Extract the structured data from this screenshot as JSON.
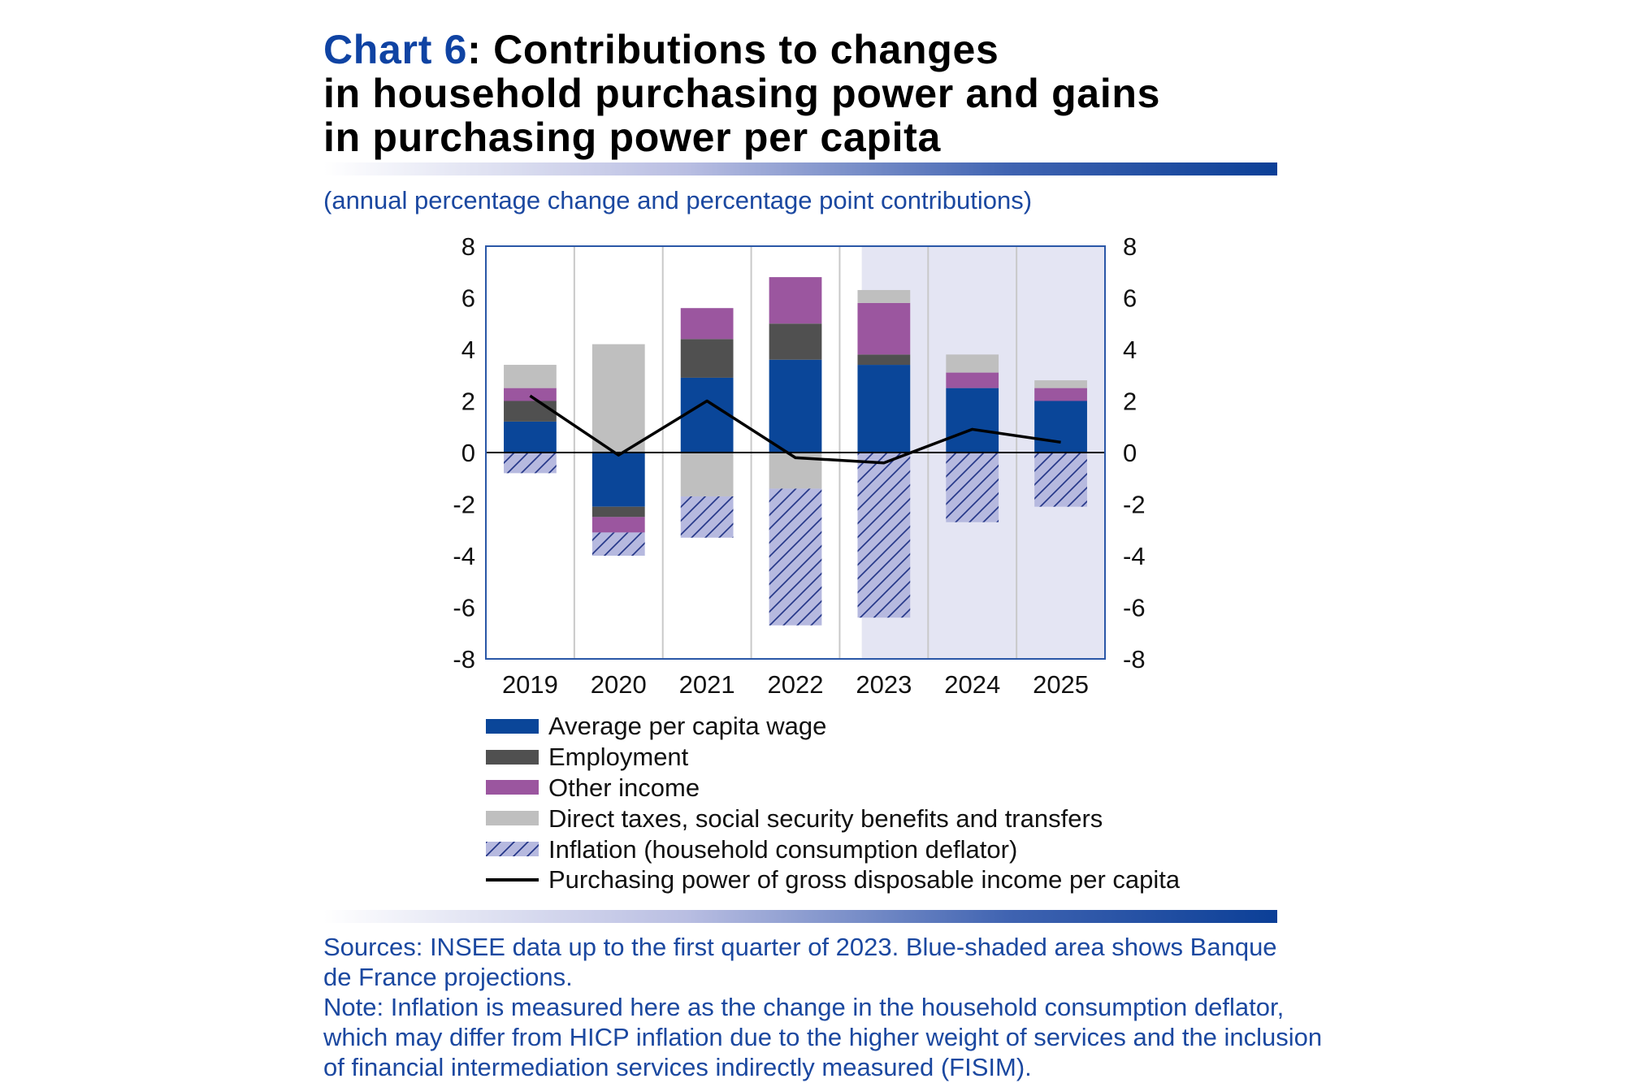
{
  "title": {
    "label": "Chart 6",
    "lines": [
      ": Contributions to changes",
      "in household purchasing power and gains",
      "in purchasing power per capita"
    ]
  },
  "subtitle": "(annual percentage change and percentage point contributions)",
  "notes": [
    "Sources: INSEE data up to the first quarter of 2023. Blue-shaded area shows Banque",
    "de France projections.",
    "Note: Inflation is measured here as the change in the household consumption deflator,",
    "which may differ from HICP inflation due to the higher weight of services and the inclusion",
    "of financial intermediation services indirectly measured (FISIM)."
  ],
  "colors": {
    "accent": "#0f43a3",
    "text_blue": "#1b48a0",
    "rule_gradient": [
      "#ffffff",
      "#b9bee2",
      "#3f63b1",
      "#0b3f97"
    ],
    "plot_frame": "#2a57a7",
    "gridline": "#c9c9c9",
    "zero_line": "#000000"
  },
  "chart_data": {
    "type": "bar",
    "stacked": true,
    "categories": [
      "2019",
      "2020",
      "2021",
      "2022",
      "2023",
      "2024",
      "2025"
    ],
    "ylim": [
      -8,
      8
    ],
    "y_ticks": [
      8,
      6,
      4,
      2,
      0,
      -2,
      -4,
      -6,
      -8
    ],
    "y_axis": "left and right",
    "grid": {
      "vertical": true,
      "horizontal": false
    },
    "legend_position": "bottom",
    "projection_shading": {
      "from_category": "2023",
      "color": "#e4e5f3"
    },
    "series": [
      {
        "name": "Average per capita wage",
        "color": "#0a4699",
        "values": [
          1.2,
          -2.1,
          2.9,
          3.6,
          3.4,
          2.5,
          2.0
        ]
      },
      {
        "name": "Employment",
        "color": "#505050",
        "values": [
          0.8,
          -0.4,
          1.5,
          1.4,
          0.4,
          0.0,
          0.0
        ]
      },
      {
        "name": "Other income",
        "color": "#9b569f",
        "values": [
          0.5,
          -0.6,
          1.2,
          1.8,
          2.0,
          0.6,
          0.5
        ]
      },
      {
        "name": "Direct taxes, social security benefits and transfers",
        "color": "#bfbfbf",
        "values": [
          0.9,
          4.2,
          -1.7,
          -1.4,
          0.5,
          0.7,
          0.3
        ]
      },
      {
        "name": "Inflation (household consumption deflator)",
        "color": "#b6b9df",
        "pattern": "hatched",
        "hatch_color": "#27398a",
        "values": [
          -0.8,
          -0.9,
          -1.6,
          -5.3,
          -6.4,
          -2.7,
          -2.1
        ]
      }
    ],
    "line_series": {
      "name": "Purchasing power of gross disposable income per capita",
      "color": "#000000",
      "values": [
        2.2,
        -0.1,
        2.0,
        -0.2,
        -0.4,
        0.9,
        0.4
      ]
    }
  }
}
